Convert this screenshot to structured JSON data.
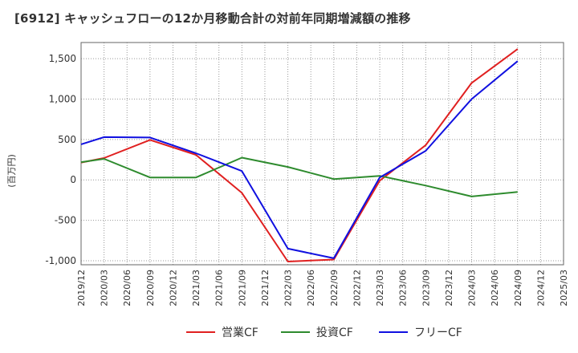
{
  "title": "[6912]  キャッシュフローの12か月移動合計の対前年同期増減額の推移",
  "chart_data": {
    "type": "line",
    "ylabel": "(百万円)",
    "ylim": [
      -1050,
      1700
    ],
    "yticks": [
      -1000,
      -500,
      0,
      500,
      1000,
      1500
    ],
    "ytick_labels": [
      "-1,000",
      "-500",
      "0",
      "500",
      "1,000",
      "1,500"
    ],
    "x": [
      "2019/12",
      "2020/03",
      "2020/06",
      "2020/09",
      "2020/12",
      "2021/03",
      "2021/06",
      "2021/09",
      "2021/12",
      "2022/03",
      "2022/06",
      "2022/09",
      "2022/12",
      "2023/03",
      "2023/06",
      "2023/09",
      "2023/12",
      "2024/03",
      "2024/06",
      "2024/09",
      "2024/12",
      "2025/03"
    ],
    "grid": true,
    "legend_position": "bottom",
    "series": [
      {
        "name": "営業CF",
        "color": "#e02020",
        "values": [
          215,
          270,
          null,
          495,
          null,
          310,
          null,
          -160,
          null,
          -1010,
          null,
          -985,
          null,
          -10,
          null,
          430,
          null,
          1200,
          null,
          1620,
          null,
          null
        ]
      },
      {
        "name": "投資CF",
        "color": "#2e8b2e",
        "values": [
          220,
          260,
          null,
          30,
          null,
          30,
          null,
          275,
          null,
          160,
          null,
          10,
          null,
          50,
          null,
          -70,
          null,
          -205,
          null,
          -150,
          null,
          null
        ]
      },
      {
        "name": "フリーCF",
        "color": "#1010e0",
        "values": [
          440,
          530,
          null,
          525,
          null,
          330,
          null,
          110,
          null,
          -850,
          null,
          -970,
          null,
          30,
          null,
          360,
          null,
          1000,
          null,
          1470,
          null,
          null
        ]
      }
    ]
  }
}
